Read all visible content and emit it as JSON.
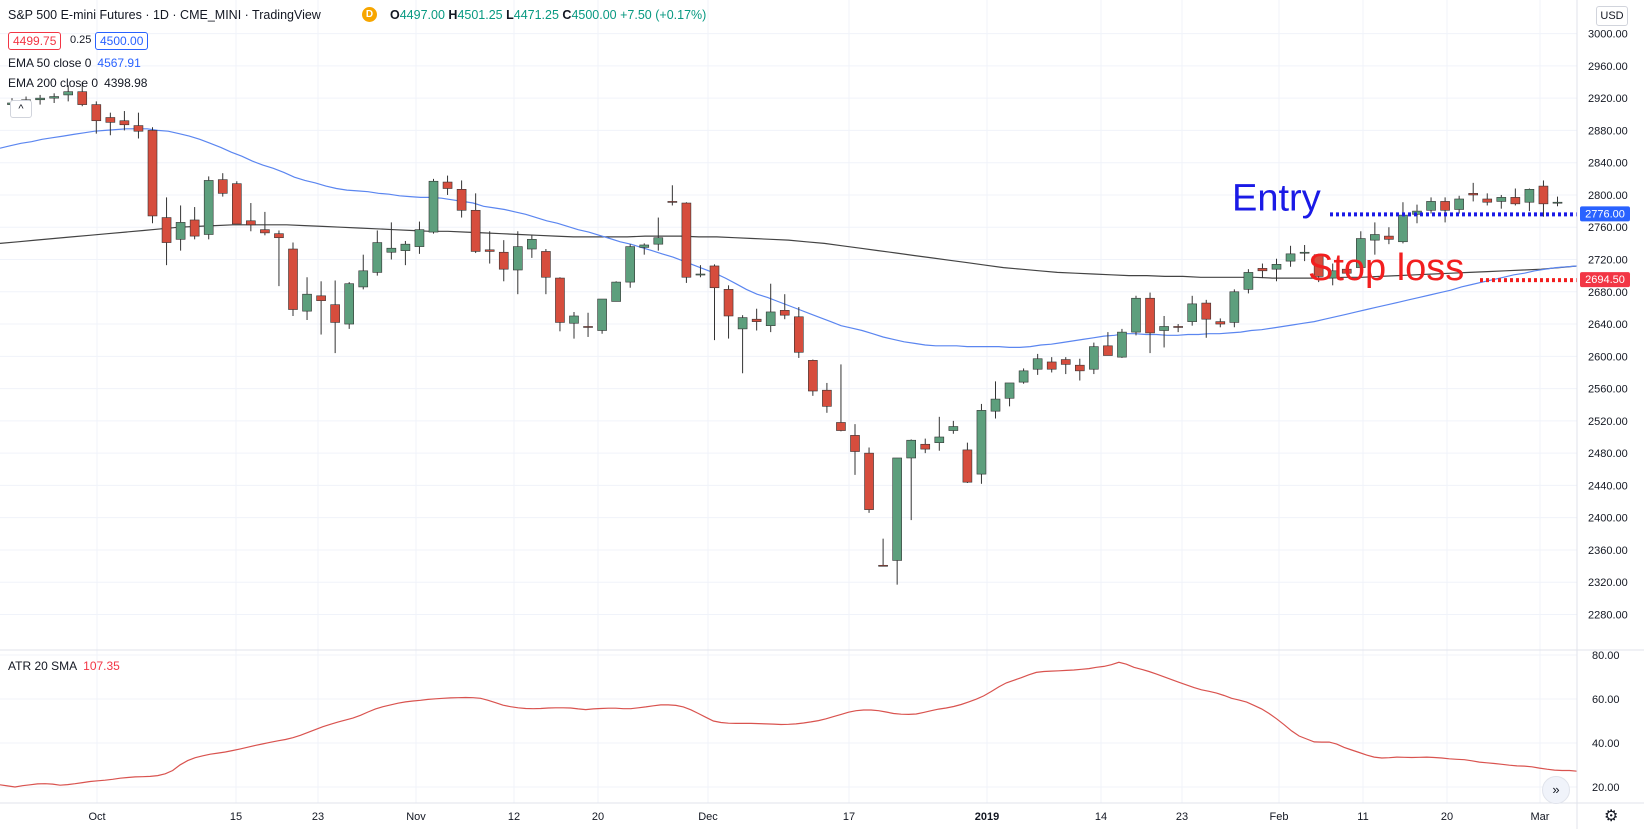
{
  "header": {
    "title": "S&P 500 E-mini Futures · 1D · CME_MINI · TradingView",
    "source_badge": "D",
    "ohlc": {
      "o_label": "O",
      "o": "4497.00",
      "h_label": "H",
      "h": "4501.25",
      "l_label": "L",
      "l": "4471.25",
      "c_label": "C",
      "c": "4500.00",
      "change": "+7.50 (+0.17%)"
    },
    "bid": "4499.75",
    "spread": "0.25",
    "ask": "4500.00",
    "currency": "USD"
  },
  "indicators": {
    "ema50": {
      "label": "EMA 50 close 0",
      "value": "4567.91",
      "color": "#2962ff"
    },
    "ema200": {
      "label": "EMA 200 close 0",
      "value": "4398.98",
      "color": "#131722"
    },
    "atr": {
      "label": "ATR 20 SMA",
      "value": "107.35",
      "color": "#f23645"
    }
  },
  "annotations": {
    "entry": {
      "label": "Entry",
      "price": 2776.0,
      "price_label": "2776.00",
      "color": "#1a1ae6"
    },
    "stop": {
      "label": "Stop loss",
      "price": 2694.5,
      "price_label": "2694.50",
      "color": "#f21f1f"
    }
  },
  "colors": {
    "up": "#5d9f7d",
    "down": "#d64d3d",
    "ema50": "#5b86f0",
    "ema200": "#444444",
    "atr": "#d9534f",
    "grid": "#f0f3fa"
  },
  "chart_data": {
    "type": "candlestick",
    "price_axis": {
      "ticks": [
        2280,
        2320,
        2360,
        2400,
        2440,
        2480,
        2520,
        2560,
        2600,
        2640,
        2680,
        2720,
        2760,
        2800,
        2840,
        2880,
        2920,
        2960,
        3000
      ]
    },
    "atr_axis": {
      "ticks": [
        20,
        40,
        60,
        80
      ]
    },
    "x_labels": [
      "Oct",
      "15",
      "23",
      "Nov",
      "12",
      "20",
      "Dec",
      "17",
      "2019",
      "14",
      "23",
      "Feb",
      "11",
      "20",
      "Mar"
    ],
    "candles": [
      [
        2912,
        2920,
        2908,
        2914
      ],
      [
        2915,
        2922,
        2910,
        2918
      ],
      [
        2918,
        2924,
        2912,
        2920
      ],
      [
        2920,
        2926,
        2914,
        2922
      ],
      [
        2924,
        2936,
        2916,
        2928
      ],
      [
        2928,
        2940,
        2910,
        2912
      ],
      [
        2912,
        2916,
        2876,
        2892
      ],
      [
        2896,
        2902,
        2874,
        2890
      ],
      [
        2892,
        2904,
        2880,
        2887
      ],
      [
        2886,
        2902,
        2870,
        2879
      ],
      [
        2880,
        2884,
        2765,
        2774
      ],
      [
        2772,
        2797,
        2713,
        2741
      ],
      [
        2745,
        2787,
        2731,
        2766
      ],
      [
        2769,
        2785,
        2745,
        2749
      ],
      [
        2751,
        2823,
        2745,
        2818
      ],
      [
        2819,
        2827,
        2798,
        2802
      ],
      [
        2814,
        2817,
        2764,
        2764
      ],
      [
        2768,
        2790,
        2755,
        2763
      ],
      [
        2757,
        2779,
        2750,
        2753
      ],
      [
        2752,
        2756,
        2687,
        2747
      ],
      [
        2733,
        2741,
        2650,
        2658
      ],
      [
        2656,
        2698,
        2645,
        2677
      ],
      [
        2675,
        2693,
        2627,
        2669
      ],
      [
        2664,
        2694,
        2604,
        2642
      ],
      [
        2640,
        2692,
        2634,
        2690
      ],
      [
        2686,
        2726,
        2683,
        2706
      ],
      [
        2704,
        2756,
        2700,
        2741
      ],
      [
        2729,
        2766,
        2720,
        2734
      ],
      [
        2731,
        2743,
        2713,
        2739
      ],
      [
        2736,
        2767,
        2727,
        2757
      ],
      [
        2754,
        2820,
        2752,
        2817
      ],
      [
        2816,
        2824,
        2800,
        2808
      ],
      [
        2807,
        2818,
        2772,
        2781
      ],
      [
        2781,
        2802,
        2728,
        2730
      ],
      [
        2732,
        2755,
        2715,
        2730
      ],
      [
        2729,
        2744,
        2693,
        2708
      ],
      [
        2707,
        2755,
        2677,
        2736
      ],
      [
        2733,
        2750,
        2722,
        2745
      ],
      [
        2730,
        2733,
        2677,
        2698
      ],
      [
        2697,
        2698,
        2631,
        2642
      ],
      [
        2641,
        2655,
        2622,
        2650
      ],
      [
        2637,
        2654,
        2624,
        2636
      ],
      [
        2632,
        2670,
        2628,
        2671
      ],
      [
        2668,
        2693,
        2668,
        2692
      ],
      [
        2692,
        2739,
        2685,
        2736
      ],
      [
        2735,
        2740,
        2726,
        2738
      ],
      [
        2739,
        2772,
        2731,
        2747
      ],
      [
        2792,
        2812,
        2787,
        2791
      ],
      [
        2790,
        2791,
        2691,
        2698
      ],
      [
        2702,
        2713,
        2698,
        2702
      ],
      [
        2712,
        2714,
        2620,
        2685
      ],
      [
        2683,
        2688,
        2622,
        2650
      ],
      [
        2634,
        2651,
        2579,
        2648
      ],
      [
        2646,
        2659,
        2632,
        2643
      ],
      [
        2638,
        2690,
        2630,
        2655
      ],
      [
        2657,
        2677,
        2646,
        2651
      ],
      [
        2649,
        2661,
        2598,
        2605
      ],
      [
        2595,
        2596,
        2551,
        2557
      ],
      [
        2558,
        2567,
        2530,
        2538
      ],
      [
        2518,
        2590,
        2507,
        2508
      ],
      [
        2502,
        2516,
        2453,
        2482
      ],
      [
        2480,
        2487,
        2406,
        2410
      ],
      [
        2341,
        2374,
        2340,
        2340
      ],
      [
        2347,
        2474,
        2317,
        2474
      ],
      [
        2474,
        2497,
        2397,
        2496
      ],
      [
        2491,
        2498,
        2480,
        2485
      ],
      [
        2493,
        2525,
        2483,
        2500
      ],
      [
        2508,
        2520,
        2504,
        2513
      ],
      [
        2484,
        2493,
        2443,
        2444
      ],
      [
        2454,
        2541,
        2442,
        2533
      ],
      [
        2532,
        2569,
        2523,
        2547
      ],
      [
        2548,
        2565,
        2538,
        2567
      ],
      [
        2568,
        2585,
        2566,
        2582
      ],
      [
        2584,
        2603,
        2577,
        2597
      ],
      [
        2593,
        2599,
        2580,
        2584
      ],
      [
        2596,
        2599,
        2578,
        2590
      ],
      [
        2589,
        2597,
        2570,
        2582
      ],
      [
        2584,
        2617,
        2578,
        2612
      ],
      [
        2613,
        2630,
        2601,
        2601
      ],
      [
        2599,
        2634,
        2598,
        2630
      ],
      [
        2630,
        2675,
        2626,
        2672
      ],
      [
        2672,
        2679,
        2604,
        2629
      ],
      [
        2632,
        2650,
        2611,
        2637
      ],
      [
        2637,
        2640,
        2630,
        2636
      ],
      [
        2643,
        2675,
        2638,
        2665
      ],
      [
        2666,
        2670,
        2623,
        2646
      ],
      [
        2643,
        2647,
        2636,
        2640
      ],
      [
        2642,
        2683,
        2636,
        2680
      ],
      [
        2683,
        2708,
        2678,
        2704
      ],
      [
        2709,
        2715,
        2697,
        2706
      ],
      [
        2708,
        2721,
        2693,
        2714
      ],
      [
        2718,
        2737,
        2711,
        2727
      ],
      [
        2728,
        2738,
        2718,
        2729
      ],
      [
        2726,
        2727,
        2692,
        2699
      ],
      [
        2697,
        2715,
        2688,
        2706
      ],
      [
        2708,
        2713,
        2702,
        2703
      ],
      [
        2710,
        2755,
        2706,
        2746
      ],
      [
        2744,
        2766,
        2726,
        2751
      ],
      [
        2749,
        2760,
        2739,
        2745
      ],
      [
        2742,
        2791,
        2740,
        2775
      ],
      [
        2776,
        2788,
        2765,
        2780
      ],
      [
        2781,
        2797,
        2777,
        2792
      ],
      [
        2792,
        2797,
        2766,
        2781
      ],
      [
        2782,
        2799,
        2777,
        2795
      ],
      [
        2802,
        2815,
        2792,
        2800
      ],
      [
        2795,
        2802,
        2787,
        2791
      ],
      [
        2792,
        2800,
        2783,
        2797
      ],
      [
        2797,
        2808,
        2787,
        2789
      ],
      [
        2791,
        2808,
        2780,
        2807
      ],
      [
        2811,
        2818,
        2773,
        2789
      ],
      [
        2790,
        2798,
        2786,
        2791
      ]
    ],
    "ema50": [
      2858,
      2861,
      2864,
      2866,
      2869,
      2871,
      2873,
      2875,
      2877,
      2879,
      2880,
      2881,
      2882,
      2882,
      2882,
      2880,
      2879,
      2876,
      2873,
      2869,
      2864,
      2859,
      2853,
      2848,
      2842,
      2837,
      2833,
      2828,
      2822,
      2818,
      2815,
      2811,
      2808,
      2806,
      2805,
      2804,
      2802,
      2801,
      2799,
      2798,
      2797,
      2797,
      2796,
      2794,
      2792,
      2790,
      2786,
      2784,
      2782,
      2779,
      2776,
      2772,
      2768,
      2765,
      2761,
      2757,
      2754,
      2750,
      2746,
      2742,
      2739,
      2735,
      2731,
      2727,
      2723,
      2718,
      2713,
      2708,
      2703,
      2697,
      2690,
      2683,
      2677,
      2673,
      2668,
      2663,
      2658,
      2653,
      2648,
      2643,
      2638,
      2635,
      2632,
      2628,
      2624,
      2621,
      2618,
      2616,
      2614,
      2613,
      2613,
      2613,
      2612,
      2612,
      2612,
      2612,
      2611,
      2611,
      2612,
      2614,
      2615,
      2617,
      2619,
      2621,
      2623,
      2625,
      2626,
      2628,
      2628,
      2627,
      2627,
      2626,
      2626,
      2627,
      2627,
      2628,
      2628,
      2629,
      2630,
      2632,
      2633,
      2635,
      2637,
      2639,
      2641,
      2643,
      2646,
      2649,
      2652,
      2655,
      2658,
      2661,
      2664,
      2667,
      2670,
      2673,
      2676,
      2679,
      2682,
      2686,
      2689,
      2692,
      2695,
      2698,
      2701,
      2703,
      2706,
      2708,
      2710,
      2711,
      2712
    ],
    "ema200": [
      2740,
      2742,
      2744,
      2746,
      2748,
      2750,
      2752,
      2754,
      2756,
      2758,
      2760,
      2761,
      2762,
      2763,
      2763,
      2763,
      2763,
      2762,
      2761,
      2760,
      2759,
      2758,
      2757,
      2756,
      2755,
      2755,
      2754,
      2753,
      2752,
      2751,
      2750,
      2749,
      2748,
      2748,
      2748,
      2748,
      2749,
      2749,
      2749,
      2748,
      2748,
      2747,
      2746,
      2745,
      2744,
      2742,
      2740,
      2737,
      2734,
      2731,
      2728,
      2725,
      2722,
      2719,
      2716,
      2713,
      2710,
      2708,
      2706,
      2704,
      2703,
      2702,
      2701,
      2700,
      2700,
      2699,
      2699,
      2698,
      2698,
      2698,
      2698,
      2697,
      2697,
      2697,
      2697,
      2698,
      2698,
      2699,
      2700,
      2701,
      2702,
      2703,
      2704,
      2705,
      2706,
      2707,
      2708,
      2710,
      2712
    ],
    "atr": [
      21,
      20.5,
      20,
      20.6,
      21,
      21.4,
      21.5,
      21.3,
      20.8,
      21.1,
      21.5,
      22,
      22.5,
      22.8,
      23.1,
      23.5,
      24,
      24.3,
      24.6,
      24.7,
      24.8,
      25.2,
      26,
      27.5,
      30.1,
      32,
      33.3,
      34.2,
      34.9,
      35.4,
      35.9,
      36.6,
      37.3,
      38.1,
      38.9,
      39.6,
      40.3,
      41,
      41.6,
      42.4,
      43.5,
      44.8,
      46.1,
      47.4,
      48.5,
      49.5,
      50.4,
      51.3,
      52.6,
      54.1,
      55.5,
      56.5,
      57.3,
      58.1,
      58.7,
      59.1,
      59.4,
      59.8,
      60.1,
      60.3,
      60.5,
      60.6,
      60.7,
      60.6,
      60.3,
      59.4,
      58.3,
      57.2,
      56.5,
      56,
      55.7,
      55.6,
      55.7,
      55.9,
      56,
      56,
      55.9,
      55.5,
      55.2,
      55.5,
      55.7,
      55.8,
      55.8,
      55.6,
      55.6,
      56,
      56.4,
      56.9,
      57.3,
      57.3,
      57.1,
      56.4,
      55.1,
      53.4,
      51.7,
      50,
      49.3,
      49,
      48.9,
      48.9,
      48.9,
      48.8,
      48.7,
      48.6,
      48.4,
      48.5,
      48.7,
      49.1,
      49.6,
      50.2,
      51,
      52,
      53,
      54,
      54.7,
      55,
      55,
      54.7,
      54.1,
      53.4,
      53.1,
      53,
      53.2,
      53.9,
      54.7,
      55.4,
      55.9,
      56.6,
      57.5,
      58.7,
      59.9,
      61.4,
      63.4,
      65.5,
      67.3,
      68.5,
      69.7,
      71,
      72.1,
      72.5,
      72.7,
      72.8,
      73,
      73.2,
      73.5,
      73.8,
      74.4,
      74.8,
      75.6,
      76.7,
      75.8,
      74.4,
      73.5,
      72.5,
      71.3,
      70.1,
      68.8,
      67.6,
      66.4,
      65.2,
      64.2,
      63.5,
      62.7,
      61.6,
      60.3,
      59.5,
      58.6,
      57.1,
      55.5,
      53.4,
      51,
      48.3,
      45.5,
      43.2,
      41.8,
      40.5,
      40.4,
      40.4,
      39.5,
      38,
      36.8,
      35.7,
      34.5,
      33.6,
      33.2,
      33.3,
      33.6,
      33.5,
      33.4,
      33.5,
      33.6,
      33.4,
      33.2,
      32.8,
      32.6,
      32.4,
      31.9,
      31.3,
      31,
      30.7,
      30.3,
      29.9,
      29.6,
      29.5,
      29.2,
      28.6,
      28.1,
      27.7,
      27.5,
      27.5,
      27.2
    ]
  }
}
